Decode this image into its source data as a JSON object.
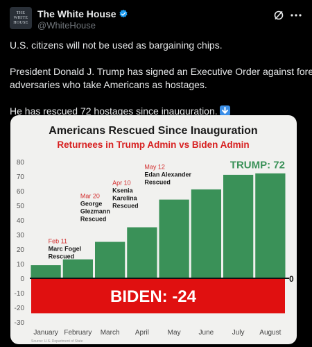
{
  "tweet": {
    "author_name": "The White House",
    "author_handle": "@WhiteHouse",
    "avatar_text": "THE\nWHITE\nHOUSE",
    "paragraphs": [
      "U.S. citizens will not be used as bargaining chips.",
      "President Donald J. Trump has signed an Executive Order against foreign",
      "adversaries who take Americans as hostages.",
      "He has rescued 72 hostages since inauguration."
    ],
    "verified_color": "#1d9bf0",
    "icons": [
      "verified-badge-icon",
      "grok-icon",
      "more-options-icon",
      "down-arrow-emoji-icon"
    ]
  },
  "chart_data": {
    "type": "bar",
    "title": "Americans Rescued Since Inauguration",
    "subtitle": "Returnees in Trump Admin vs Biden Admin",
    "categories": [
      "January",
      "February",
      "March",
      "April",
      "May",
      "June",
      "July",
      "August"
    ],
    "values": [
      9,
      13,
      25,
      35,
      54,
      61,
      71,
      72
    ],
    "ylim": [
      -30,
      85
    ],
    "yticks": [
      -30,
      -20,
      -10,
      0,
      10,
      20,
      30,
      40,
      50,
      60,
      70,
      80
    ],
    "grid": false,
    "bar_color": "#3a9158",
    "trump_label": "TRUMP: 72",
    "trump_color": "#3a9158",
    "biden_label": "BIDEN: -24",
    "biden_value": -24,
    "biden_color": "#e01010",
    "zero_label": "0",
    "subtitle_color": "#d71f1f",
    "annotations": [
      {
        "date": "Feb 11",
        "lines": [
          "Marc Fogel",
          "Rescued"
        ],
        "category": "January",
        "y": 24
      },
      {
        "date": "Mar 20",
        "lines": [
          "George",
          "Glezmann",
          "Rescued"
        ],
        "category": "February",
        "y": 55
      },
      {
        "date": "Apr 10",
        "lines": [
          "Ksenia",
          "Karelina",
          "Rescued"
        ],
        "category": "March",
        "y": 64
      },
      {
        "date": "May 12",
        "lines": [
          "Edan Alexander",
          "Rescued"
        ],
        "category": "April",
        "y": 75
      }
    ],
    "source": "Source: U.S. Department of State"
  }
}
